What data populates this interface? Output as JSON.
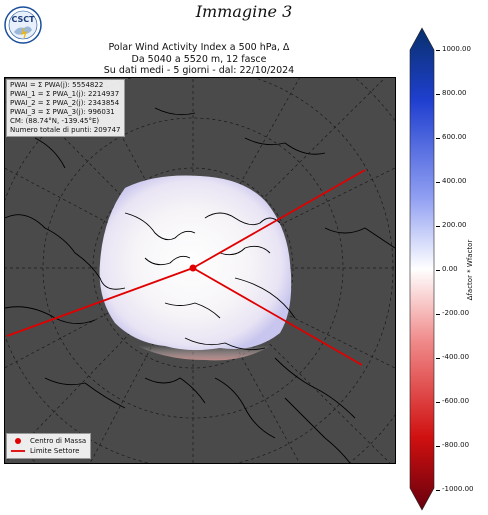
{
  "caption": "Immagine 3",
  "logo": {
    "text": "CSCT",
    "ring_text": "CENTRO DI STUDI SUL CLIMA E IL TEMPO"
  },
  "title_lines": [
    "Polar Wind Activity Index a 500 hPa, Δ",
    "Da 5040 a 5520 m, 12 fasce",
    "Su dati medi - 5 giorni - dal: 22/10/2024"
  ],
  "info_lines": [
    "PWAI = Σ PWA(j): 5554822",
    "PWAI_1 = Σ PWA_1(j): 2214937",
    "PWAI_2 = Σ PWA_2(j): 2343854",
    "PWAI_3 = Σ PWA_3(j): 996031",
    "CM: (88.74°N, -139.45°E)",
    "Numero totale di punti: 209747"
  ],
  "legend": {
    "center_of_mass": "Centro di Massa",
    "sector_limit": "Limite Settore"
  },
  "colorbar": {
    "label": "Δfactor * Wfactor",
    "ticks": [
      "1000.00",
      "800.00",
      "600.00",
      "400.00",
      "200.00",
      "0.00",
      "-200.00",
      "-400.00",
      "-600.00",
      "-800.00",
      "-1000.00"
    ],
    "colors": {
      "max": "#08306b",
      "mid": "#ffffff",
      "min": "#67000d"
    }
  },
  "map_colors": {
    "ocean": "#4a4a4a",
    "land": "#000000",
    "sector_line": "#e00000"
  }
}
